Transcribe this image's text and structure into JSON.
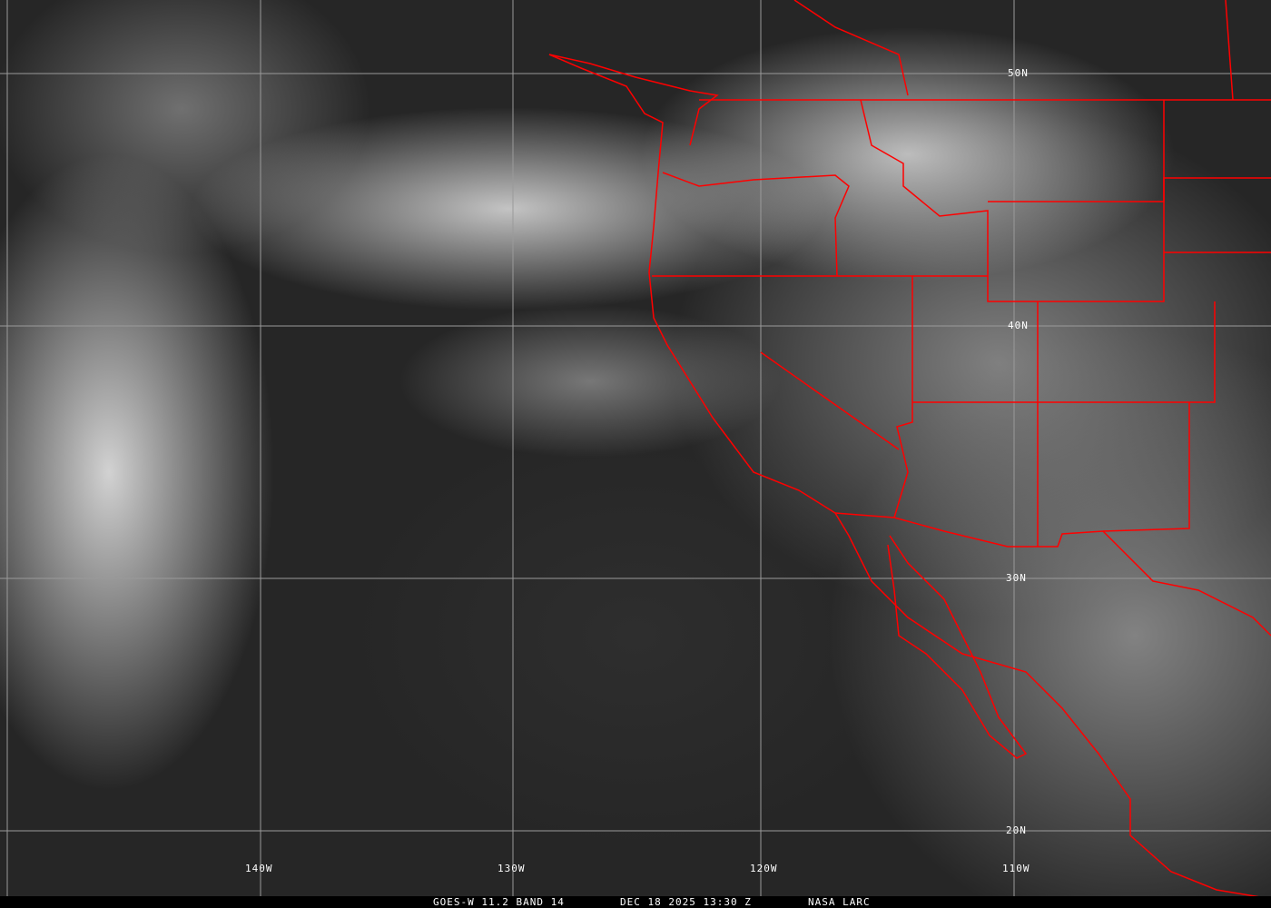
{
  "caption": {
    "satellite": "GOES-W 11.2 BAND 14",
    "datetime": "DEC 18 2025 13:30 Z",
    "credit": "NASA LARC"
  },
  "grid": {
    "latitudes": [
      "50N",
      "40N",
      "30N",
      "20N"
    ],
    "longitudes": [
      "140W",
      "130W",
      "120W",
      "110W"
    ]
  },
  "colors": {
    "borders": "#ff0000",
    "grid": "#9a9a9a",
    "caption_bg": "#000000"
  }
}
